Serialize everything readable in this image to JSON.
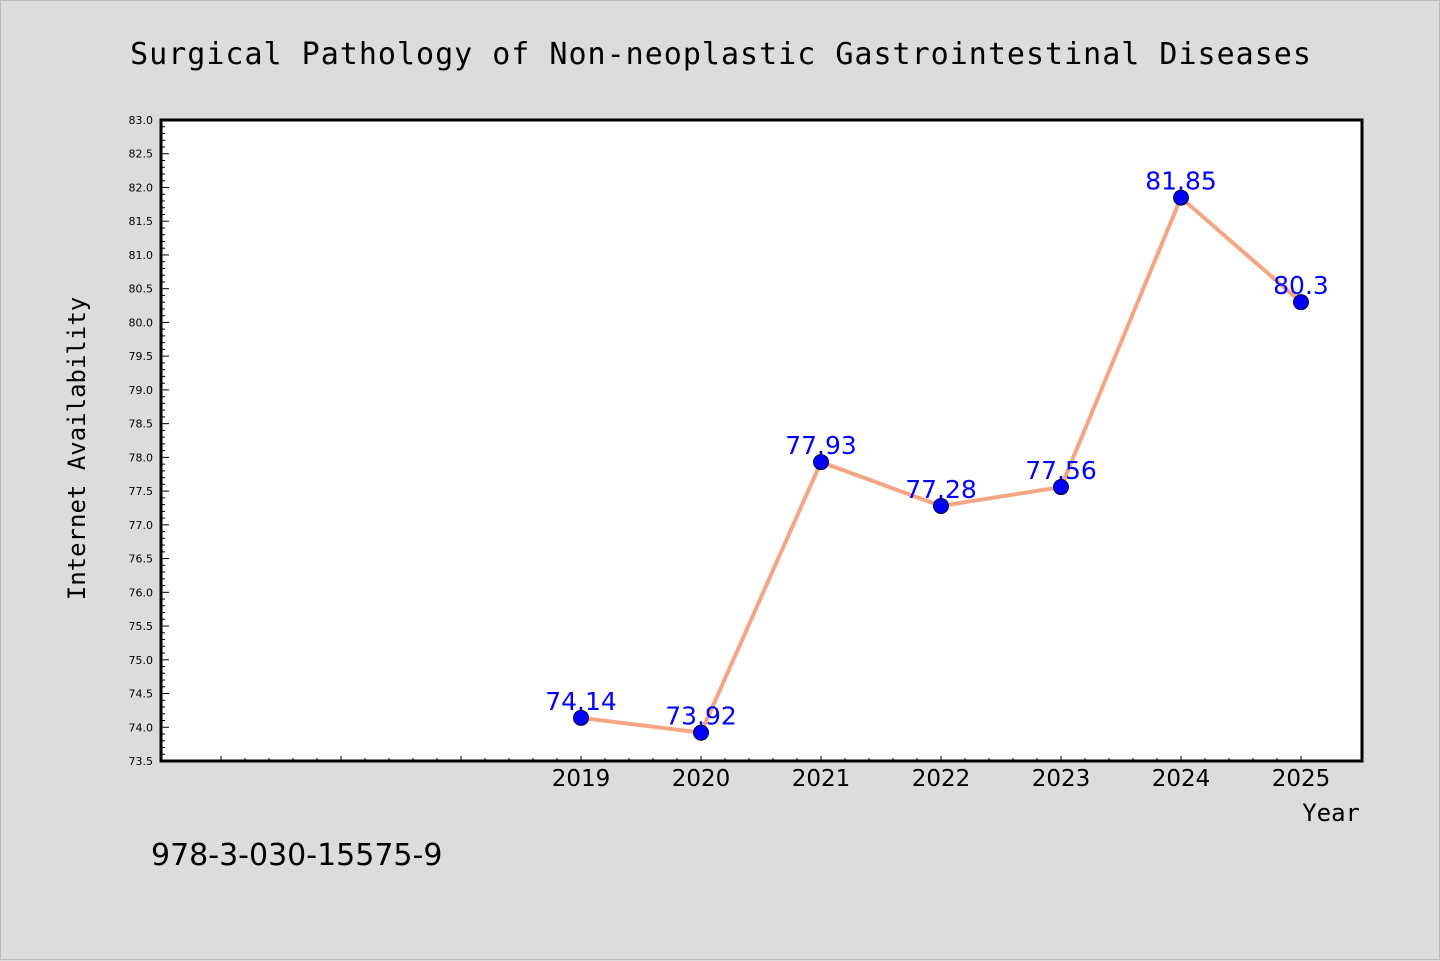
{
  "footer": {
    "isbn": "978-3-030-15575-9"
  },
  "colors": {
    "line": "#f4a582",
    "marker": "#0000ff",
    "label": "#0000ff",
    "plot_bg": "#ffffff",
    "page_bg": "#dcdcdc"
  },
  "chart_data": {
    "type": "line",
    "title": "Surgical Pathology of Non-neoplastic Gastrointestinal Diseases",
    "xlabel": "Year",
    "ylabel": "Internet Availability",
    "x": [
      "2019",
      "2020",
      "2021",
      "2022",
      "2023",
      "2024",
      "2025"
    ],
    "series": [
      {
        "values": [
          74.14,
          73.92,
          77.93,
          77.28,
          77.56,
          81.85,
          80.3
        ]
      }
    ],
    "data_labels": [
      "74.14",
      "73.92",
      "77.93",
      "77.28",
      "77.56",
      "81.85",
      "80.3"
    ],
    "ylim": [
      73.5,
      83.0
    ],
    "yticks": [
      "73.5",
      "74.0",
      "74.5",
      "75.0",
      "75.5",
      "76.0",
      "76.5",
      "77.0",
      "77.5",
      "78.0",
      "78.5",
      "79.0",
      "79.5",
      "80.0",
      "80.5",
      "81.0",
      "81.5",
      "82.0",
      "82.5",
      "83.0"
    ],
    "grid": false,
    "legend": "none"
  }
}
